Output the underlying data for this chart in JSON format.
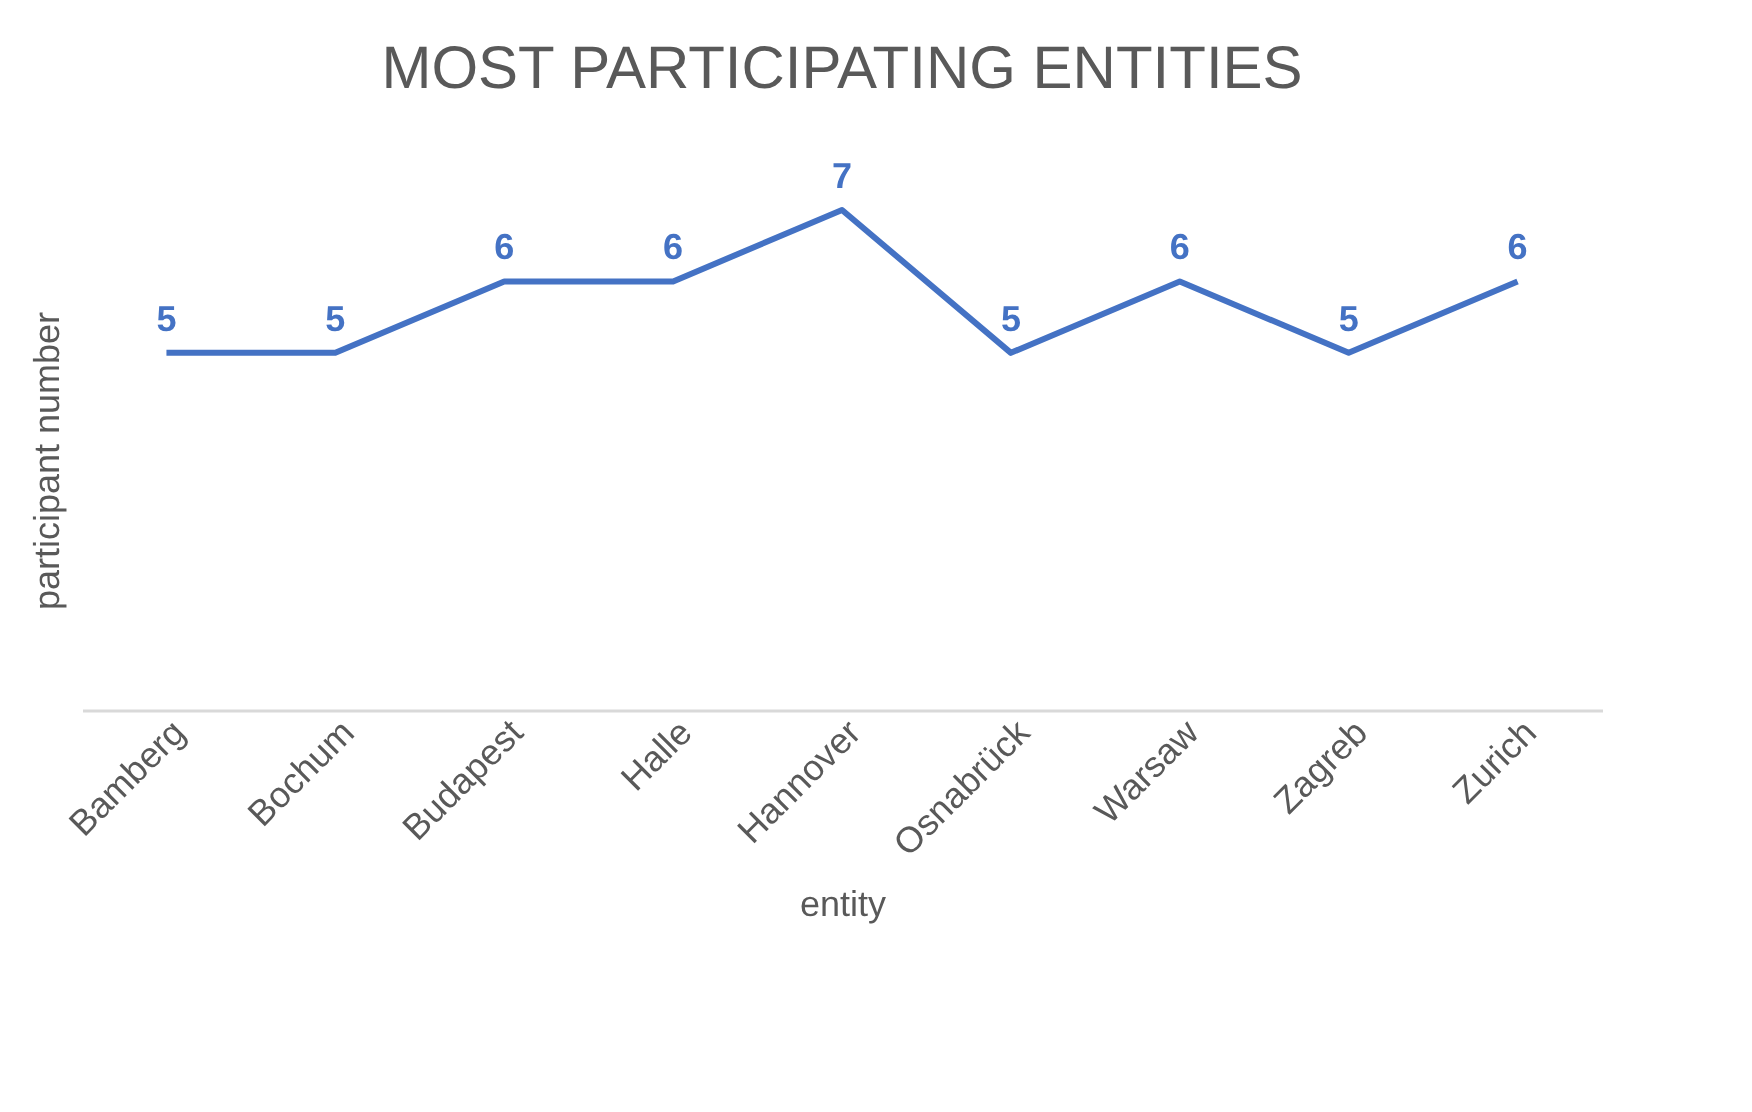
{
  "chart_data": {
    "type": "line",
    "title": "MOST PARTICIPATING ENTITIES",
    "xlabel": "entity",
    "ylabel": "participant number",
    "categories": [
      "Bamberg",
      "Bochum",
      "Budapest",
      "Halle",
      "Hannover",
      "Osnabrück",
      "Warsaw",
      "Zagreb",
      "Zurich"
    ],
    "series": [
      {
        "color": "#4472c4",
        "values": [
          5,
          5,
          6,
          6,
          7,
          5,
          6,
          5,
          6
        ]
      }
    ],
    "data_labels": true,
    "grid": false,
    "marker": "none",
    "line_style": "solid",
    "tick_labels": "x"
  }
}
